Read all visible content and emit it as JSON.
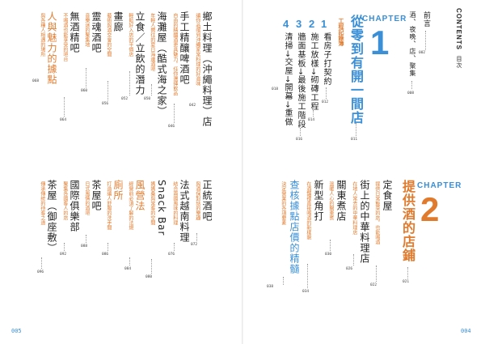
{
  "header": {
    "contents_en": "CONTENTS",
    "contents_zh": "目次"
  },
  "front": [
    {
      "title": "前言",
      "page": "002"
    },
    {
      "title": "酒、夜晚、店、聚集",
      "page": "008"
    }
  ],
  "chapter1": {
    "word": "CHAPTER",
    "number": "1",
    "title": "從零到有開一間店",
    "page": "011",
    "steps": [
      {
        "num": "1",
        "text": "看房子打契約",
        "page": "012"
      },
      {
        "num": "2",
        "text": "施工放樣→砌磚工程",
        "page": "014"
      },
      {
        "num": "3",
        "text": "牆面基板→最後施工階段",
        "page": "016"
      },
      {
        "num": "4",
        "text": "清掃→交屋→開幕→重做",
        "page": "018"
      }
    ],
    "diary_label": "工程記錄簿"
  },
  "chapter2": {
    "word": "CHAPTER",
    "number": "2",
    "title": "提供酒的店鋪",
    "page": "021"
  },
  "left_top": [
    {
      "title": "鄉土料理（沖繩料理）店",
      "sub": "讓你品嚐到沖繩家常料理的好滋味",
      "page": "042"
    },
    {
      "title": "手工精釀啤酒吧",
      "sub": "自由的精釀酒更具魅力，任你選擇飲品",
      "page": "046"
    },
    {
      "title": "海灘屋（酷式海之家）",
      "sub": "年輕人嚮往的夏日海邊酒吧",
      "page": "050"
    },
    {
      "title": "立食／立飲的潛力",
      "sub": "輕鬆好入店的平價店",
      "page": "052"
    },
    {
      "title": "畫廊",
      "sub": "藝術與酒交會的空間",
      "page": "056"
    },
    {
      "title": "靈魂酒吧",
      "sub": "音樂迷的聚集地",
      "page": "060"
    },
    {
      "title": "無酒精吧",
      "sub": "不喝酒也能享受的吧台",
      "page": "064"
    },
    {
      "title": "人與魅力的據點",
      "sub": "與各種人相遇的場所",
      "page": "068"
    }
  ],
  "left_bottom": [
    {
      "title": "正統酒吧",
      "sub": "與酒保對話的樂趣",
      "page": "072"
    },
    {
      "title": "法式越南料理",
      "sub": "結合兩國風味的料理",
      "page": "076"
    },
    {
      "title": "Snack Bar",
      "sub": "媽媽桑與常客的空間",
      "page": "080"
    },
    {
      "title": "風營法",
      "sub": "經營前必須了解的法規",
      "page": "084"
    },
    {
      "title": "廁所",
      "sub": "打造讓人舒服的洗手間",
      "page": "086"
    },
    {
      "title": "茶屋吧",
      "sub": "日式風情的酒吧",
      "page": "088"
    },
    {
      "title": "國際俱樂部",
      "sub": "聚集各國客人的店",
      "page": "092"
    },
    {
      "title": "茶屋（御座敷）",
      "sub": "傳承傳統的待客之道",
      "page": "096"
    }
  ],
  "right_bottom": [
    {
      "title": "定食屋",
      "sub": "提供日常飯菜的店，也能喝酒",
      "page": "022"
    },
    {
      "title": "街上的中華料理店",
      "sub": "在地人常去的中華料理店",
      "page": "026"
    },
    {
      "title": "關東煮店",
      "sub": "溫暖人心的關東煮",
      "page": "030"
    },
    {
      "title": "新型角打",
      "sub": "在酒舖裡直接喝酒的新樣貌",
      "page": "034"
    },
    {
      "title": "查核據點店價的精髓",
      "sub": "決定營業的各項要素",
      "page": "038"
    }
  ],
  "folios": {
    "left": "005",
    "right": "004"
  }
}
